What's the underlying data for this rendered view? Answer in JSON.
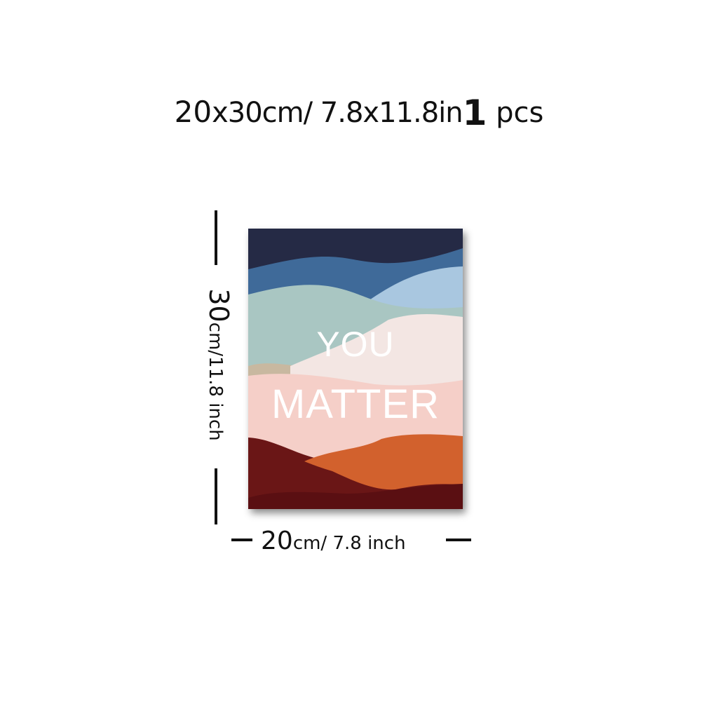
{
  "header": {
    "size_prefix": "20",
    "size_x": "x30cm/ 7.8x11.8in",
    "quantity": "1",
    "quantity_unit": "pcs"
  },
  "artwork": {
    "line1": "YOU",
    "line2": "MATTER",
    "text_color": "#ffffff",
    "palette": [
      "#252a45",
      "#3f6a99",
      "#a9c7e0",
      "#a9c6c2",
      "#f3e6e3",
      "#c8b8a0",
      "#f5cfc8",
      "#6a1616",
      "#d2612d",
      "#5a0f12"
    ]
  },
  "dimensions": {
    "height_value": "30",
    "height_unit": "cm/11.8 inch",
    "width_value": "20",
    "width_unit": "cm/ 7.8 inch"
  }
}
